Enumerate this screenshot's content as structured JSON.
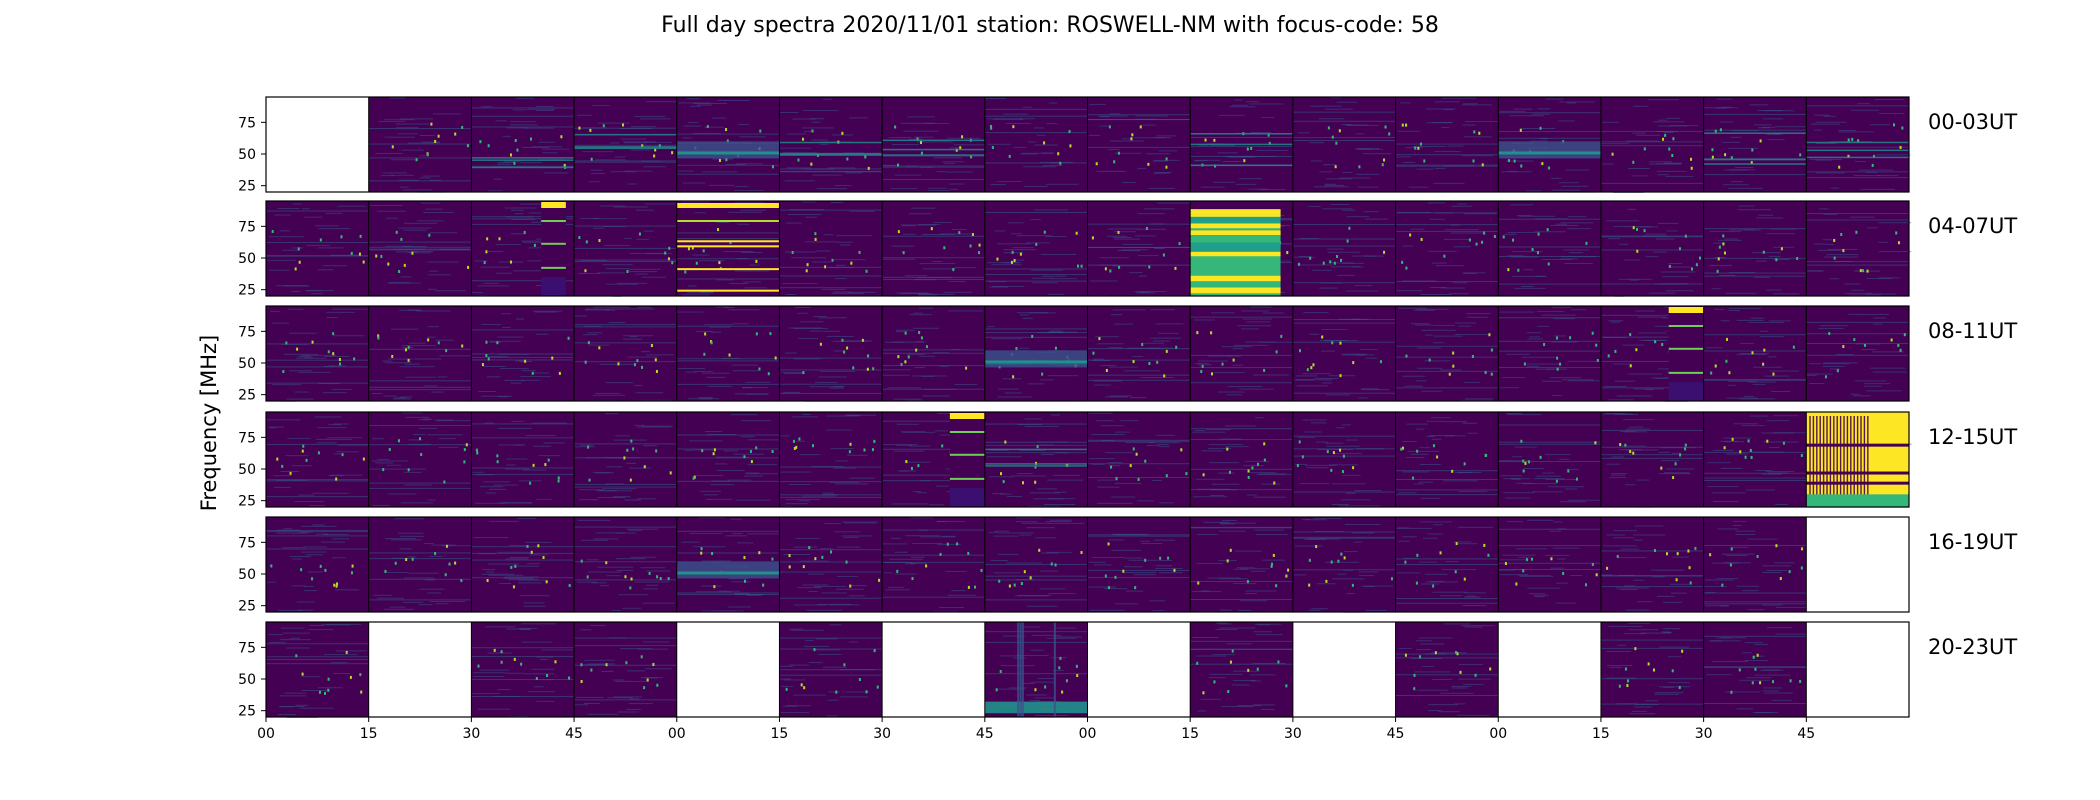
{
  "chart_data": {
    "type": "heatmap",
    "title": "Full day spectra 2020/11/01 station: ROSWELL-NM with focus-code: 58",
    "ylabel": "Frequency [MHz]",
    "ylim": [
      20,
      95
    ],
    "yticks": [
      "25",
      "50",
      "75"
    ],
    "ytick_values": [
      25,
      50,
      75
    ],
    "xticks": [
      "00",
      "15",
      "30",
      "45",
      "00",
      "15",
      "30",
      "45",
      "00",
      "15",
      "30",
      "45",
      "00",
      "15",
      "30",
      "45"
    ],
    "colormap": "viridis",
    "colors": {
      "low": "#440154",
      "mid": "#21918c",
      "high": "#fde725"
    },
    "rows": [
      {
        "label": "00-03UT",
        "panels": [
          "empty",
          "noise",
          "lines",
          "lines",
          "band-50",
          "lines",
          "lines",
          "noise",
          "noise",
          "lines",
          "noise",
          "noise",
          "band-50",
          "noise",
          "lines",
          "lines"
        ]
      },
      {
        "label": "04-07UT",
        "panels": [
          "noise",
          "noise",
          "noise-bright-strip",
          "noise",
          "bright-lines",
          "noise",
          "noise",
          "noise",
          "noise",
          "bright-block",
          "noise",
          "noise",
          "noise",
          "noise",
          "noise",
          "noise"
        ]
      },
      {
        "label": "08-11UT",
        "panels": [
          "noise",
          "noise",
          "noise",
          "noise",
          "noise",
          "noise",
          "noise",
          "band-50",
          "noise",
          "noise",
          "noise",
          "noise",
          "noise",
          "bright-strip-right",
          "noise",
          "noise"
        ]
      },
      {
        "label": "12-15UT",
        "panels": [
          "noise",
          "noise",
          "noise",
          "noise",
          "noise",
          "noise",
          "bright-strip-right",
          "lines",
          "noise",
          "noise",
          "noise",
          "noise",
          "noise",
          "noise",
          "noise",
          "bright-block-vertical"
        ]
      },
      {
        "label": "16-19UT",
        "panels": [
          "noise",
          "noise",
          "noise",
          "noise",
          "band-50",
          "noise",
          "noise",
          "noise",
          "noise",
          "noise",
          "noise",
          "noise",
          "noise",
          "noise",
          "noise",
          "empty"
        ]
      },
      {
        "label": "20-23UT",
        "panels": [
          "noise",
          "empty",
          "noise",
          "noise",
          "empty",
          "noise",
          "empty",
          "band-25",
          "empty",
          "noise",
          "empty",
          "noise",
          "empty",
          "noise",
          "noise",
          "empty"
        ]
      }
    ]
  }
}
